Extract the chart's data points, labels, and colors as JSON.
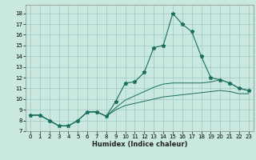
{
  "xlabel": "Humidex (Indice chaleur)",
  "background_color": "#c8e8e0",
  "grid_color": "#a0c8c0",
  "line_color": "#1a6e60",
  "xlim": [
    -0.5,
    23.5
  ],
  "ylim": [
    7,
    18.8
  ],
  "xticks": [
    0,
    1,
    2,
    3,
    4,
    5,
    6,
    7,
    8,
    9,
    10,
    11,
    12,
    13,
    14,
    15,
    16,
    17,
    18,
    19,
    20,
    21,
    22,
    23
  ],
  "yticks": [
    7,
    8,
    9,
    10,
    11,
    12,
    13,
    14,
    15,
    16,
    17,
    18
  ],
  "main_curve": {
    "x": [
      0,
      1,
      2,
      3,
      4,
      5,
      6,
      7,
      8,
      9,
      10,
      11,
      12,
      13,
      14,
      15,
      16,
      17,
      18,
      19,
      20,
      21,
      22,
      23
    ],
    "y": [
      8.5,
      8.5,
      8.0,
      7.5,
      7.5,
      8.0,
      8.8,
      8.8,
      8.4,
      9.8,
      11.5,
      11.6,
      12.5,
      14.8,
      15.0,
      18.0,
      17.0,
      16.3,
      14.0,
      12.0,
      11.8,
      11.5,
      11.0,
      10.8
    ]
  },
  "upper_curve": {
    "x": [
      0,
      1,
      2,
      3,
      4,
      5,
      6,
      7,
      8,
      9,
      10,
      11,
      12,
      13,
      14,
      15,
      16,
      17,
      18,
      19,
      20,
      21,
      22,
      23
    ],
    "y": [
      8.5,
      8.5,
      8.0,
      7.5,
      7.5,
      8.0,
      8.8,
      8.8,
      8.4,
      9.2,
      9.9,
      10.3,
      10.7,
      11.1,
      11.4,
      11.5,
      11.5,
      11.5,
      11.5,
      11.6,
      11.8,
      11.5,
      11.0,
      10.8
    ]
  },
  "lower_curve": {
    "x": [
      0,
      1,
      2,
      3,
      4,
      5,
      6,
      7,
      8,
      9,
      10,
      11,
      12,
      13,
      14,
      15,
      16,
      17,
      18,
      19,
      20,
      21,
      22,
      23
    ],
    "y": [
      8.5,
      8.5,
      8.0,
      7.5,
      7.5,
      8.0,
      8.8,
      8.8,
      8.4,
      9.0,
      9.4,
      9.6,
      9.8,
      10.0,
      10.2,
      10.3,
      10.4,
      10.5,
      10.6,
      10.7,
      10.8,
      10.7,
      10.5,
      10.5
    ]
  }
}
